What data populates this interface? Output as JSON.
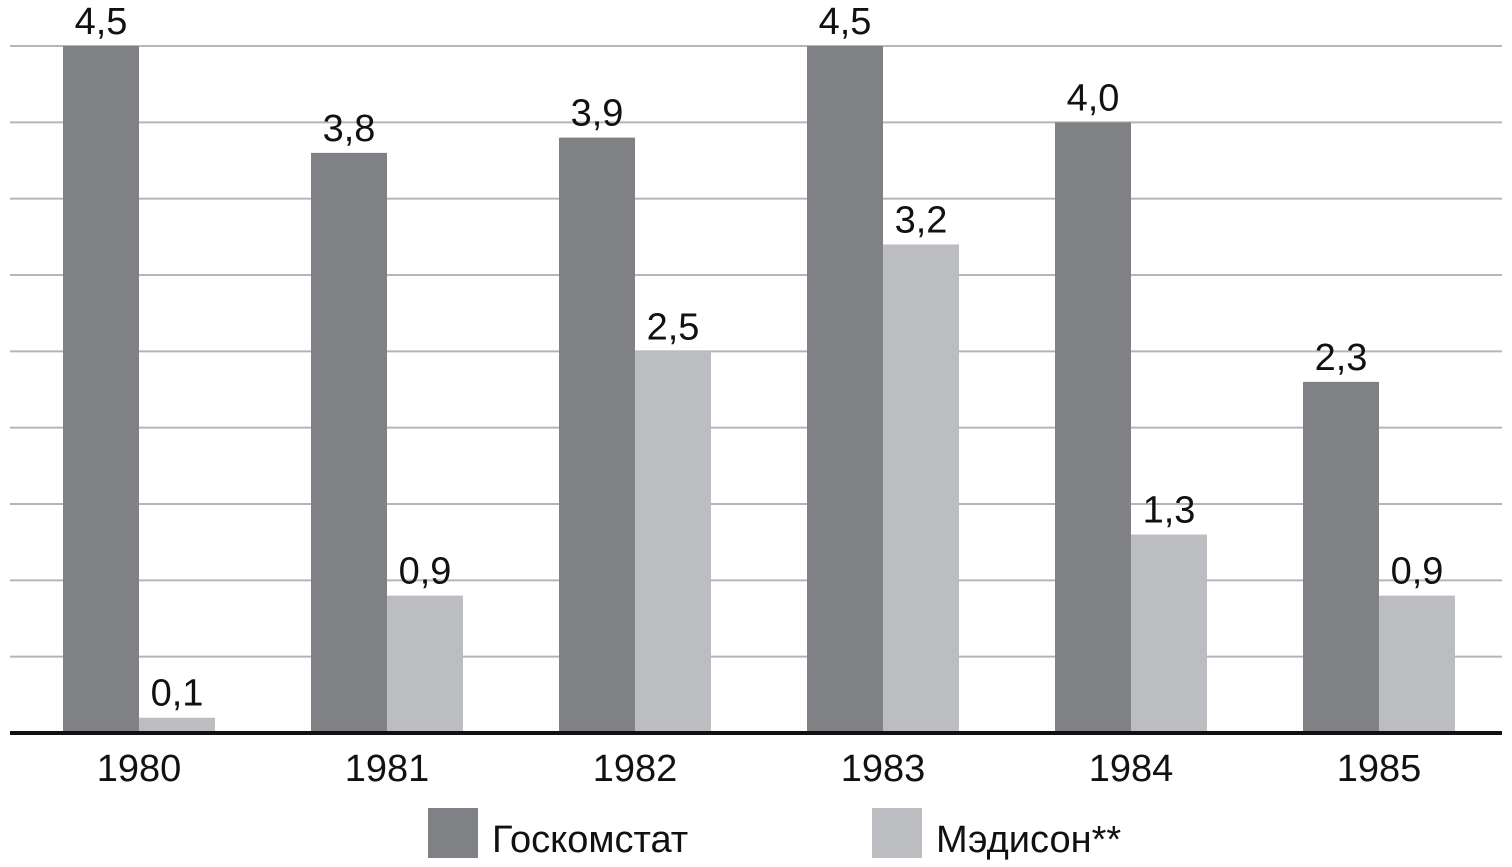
{
  "chart_data": {
    "type": "bar",
    "title": "",
    "xlabel": "",
    "ylabel": "",
    "categories": [
      "1980",
      "1981",
      "1982",
      "1983",
      "1984",
      "1985"
    ],
    "series": [
      {
        "name": "Госкомстат",
        "color": "#808184",
        "values": [
          4.5,
          3.8,
          3.9,
          4.5,
          4.0,
          2.3
        ],
        "labels": [
          "4,5",
          "3,8",
          "3,9",
          "4,5",
          "4,0",
          "2,3"
        ]
      },
      {
        "name": "Мэдисон**",
        "color": "#bcbdc0",
        "values": [
          0.1,
          0.9,
          2.5,
          3.2,
          1.3,
          0.9
        ],
        "labels": [
          "0,1",
          "0,9",
          "2,5",
          "3,2",
          "1,3",
          "0,9"
        ]
      }
    ],
    "ylim": [
      0,
      4.5
    ],
    "grid": true,
    "grid_step": 0.5,
    "y_axis_labels": false,
    "legend": "bottom"
  }
}
